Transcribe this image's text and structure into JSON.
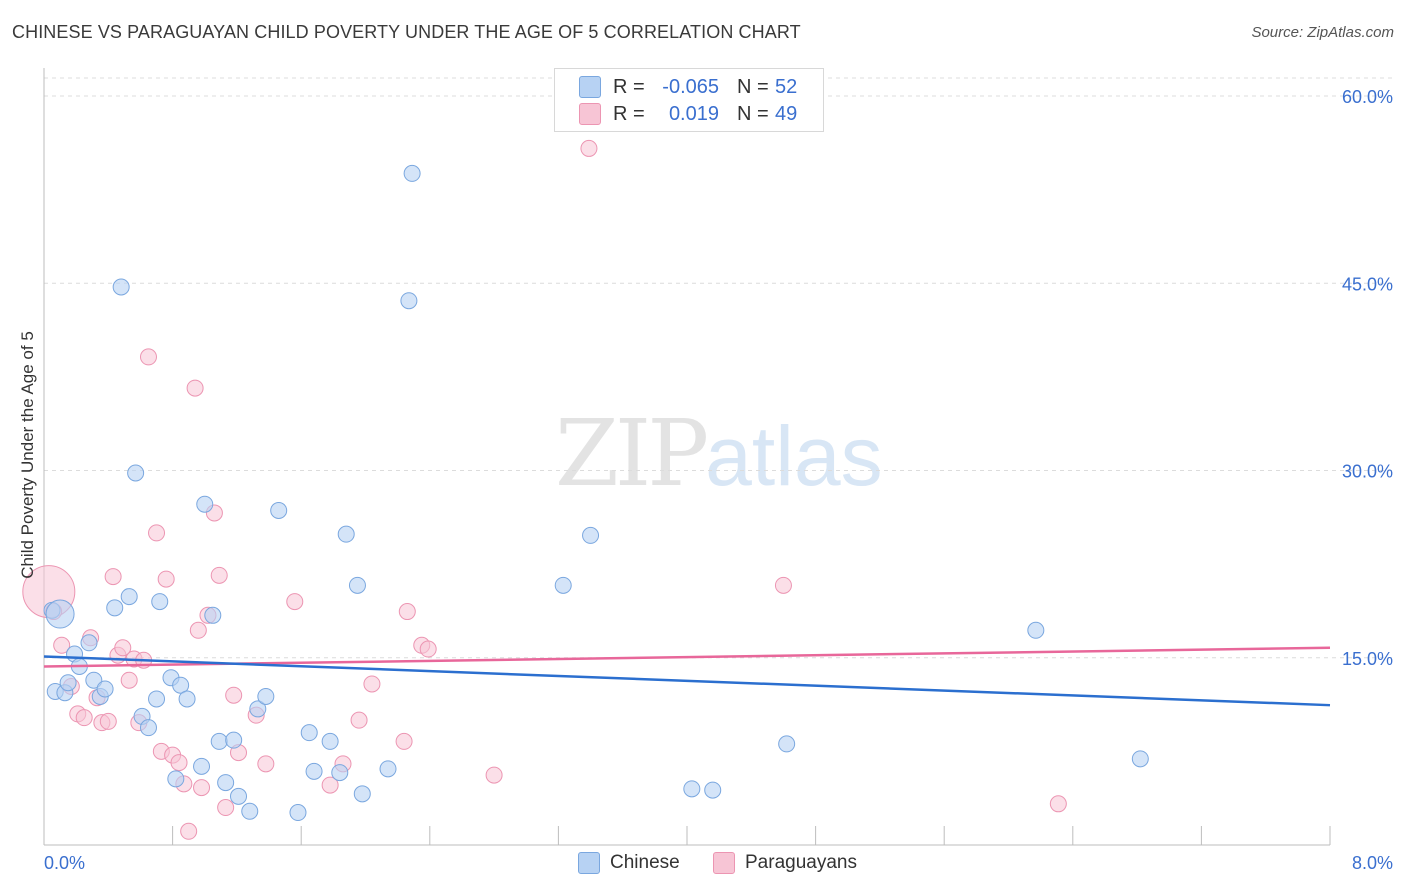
{
  "title": "CHINESE VS PARAGUAYAN CHILD POVERTY UNDER THE AGE OF 5 CORRELATION CHART",
  "source": "Source: ZipAtlas.com",
  "watermark": {
    "zip": "ZIP",
    "atlas": "atlas"
  },
  "legend": {
    "rows": [
      {
        "r_label": "R =",
        "r_value": "-0.065",
        "n_label": "N =",
        "n_value": "52"
      },
      {
        "r_label": "R =",
        "r_value": "0.019",
        "n_label": "N =",
        "n_value": "49"
      }
    ]
  },
  "bottom_legend": {
    "chinese": "Chinese",
    "paraguayans": "Paraguayans"
  },
  "colors": {
    "blue_fill": "#b7d2f3",
    "blue_stroke": "#7aa7df",
    "blue_line": "#2b6fcf",
    "pink_fill": "#f7c5d5",
    "pink_stroke": "#ec95b2",
    "pink_line": "#e8679a",
    "axis_text": "#3a6fcf",
    "grid": "#dcdcdc"
  },
  "chart_data": {
    "type": "scatter",
    "title": "CHINESE VS PARAGUAYAN CHILD POVERTY UNDER THE AGE OF 5 CORRELATION CHART",
    "xlabel": "",
    "ylabel": "Child Poverty Under the Age of 5",
    "xlim": [
      0.0,
      8.0
    ],
    "ylim": [
      0.0,
      60.0
    ],
    "x_tick_labels": [
      "0.0%",
      "8.0%"
    ],
    "y_ticks": [
      15,
      30,
      45,
      60
    ],
    "y_tick_labels": [
      "15.0%",
      "30.0%",
      "45.0%",
      "60.0%"
    ],
    "series": [
      {
        "name": "Chinese",
        "r": -0.065,
        "n": 52,
        "trend": {
          "x": [
            0.0,
            8.0
          ],
          "y": [
            15.1,
            11.2
          ]
        },
        "points": [
          [
            0.05,
            18.8
          ],
          [
            0.07,
            12.3
          ],
          [
            0.13,
            12.2
          ],
          [
            0.15,
            13.0
          ],
          [
            0.19,
            15.3
          ],
          [
            0.22,
            14.3
          ],
          [
            0.28,
            16.2
          ],
          [
            0.31,
            13.2
          ],
          [
            0.35,
            11.9
          ],
          [
            0.38,
            12.5
          ],
          [
            0.44,
            19.0
          ],
          [
            0.48,
            44.7
          ],
          [
            0.53,
            19.9
          ],
          [
            0.57,
            29.8
          ],
          [
            0.61,
            10.3
          ],
          [
            0.65,
            9.4
          ],
          [
            0.7,
            11.7
          ],
          [
            0.72,
            19.5
          ],
          [
            0.79,
            13.4
          ],
          [
            0.82,
            5.3
          ],
          [
            0.85,
            12.8
          ],
          [
            0.89,
            11.7
          ],
          [
            0.98,
            6.3
          ],
          [
            1.0,
            27.3
          ],
          [
            1.05,
            18.4
          ],
          [
            1.09,
            8.3
          ],
          [
            1.13,
            5.0
          ],
          [
            1.18,
            8.4
          ],
          [
            1.21,
            3.9
          ],
          [
            1.28,
            2.7
          ],
          [
            1.33,
            10.9
          ],
          [
            1.38,
            11.9
          ],
          [
            1.46,
            26.8
          ],
          [
            1.58,
            2.6
          ],
          [
            1.65,
            9.0
          ],
          [
            1.68,
            5.9
          ],
          [
            1.78,
            8.3
          ],
          [
            1.84,
            5.8
          ],
          [
            1.88,
            24.9
          ],
          [
            1.95,
            20.8
          ],
          [
            1.98,
            4.1
          ],
          [
            2.14,
            6.1
          ],
          [
            2.27,
            43.6
          ],
          [
            2.29,
            53.8
          ],
          [
            3.23,
            20.8
          ],
          [
            3.4,
            24.8
          ],
          [
            4.03,
            4.5
          ],
          [
            4.16,
            4.4
          ],
          [
            4.62,
            8.1
          ],
          [
            6.17,
            17.2
          ],
          [
            6.82,
            6.9
          ],
          [
            0.1,
            18.5
          ]
        ]
      },
      {
        "name": "Paraguayans",
        "r": 0.019,
        "n": 49,
        "trend": {
          "x": [
            0.0,
            8.0
          ],
          "y": [
            14.3,
            15.8
          ]
        },
        "points": [
          [
            0.03,
            20.3
          ],
          [
            0.06,
            18.7
          ],
          [
            0.11,
            16.0
          ],
          [
            0.17,
            12.7
          ],
          [
            0.21,
            10.5
          ],
          [
            0.25,
            10.2
          ],
          [
            0.29,
            16.6
          ],
          [
            0.33,
            11.8
          ],
          [
            0.36,
            9.8
          ],
          [
            0.4,
            9.9
          ],
          [
            0.43,
            21.5
          ],
          [
            0.46,
            15.2
          ],
          [
            0.49,
            15.8
          ],
          [
            0.53,
            13.2
          ],
          [
            0.56,
            14.9
          ],
          [
            0.59,
            9.8
          ],
          [
            0.62,
            14.8
          ],
          [
            0.65,
            39.1
          ],
          [
            0.7,
            25.0
          ],
          [
            0.73,
            7.5
          ],
          [
            0.76,
            21.3
          ],
          [
            0.8,
            7.2
          ],
          [
            0.84,
            6.6
          ],
          [
            0.87,
            4.9
          ],
          [
            0.9,
            1.1
          ],
          [
            0.94,
            36.6
          ],
          [
            0.96,
            17.2
          ],
          [
            0.98,
            4.6
          ],
          [
            1.02,
            18.4
          ],
          [
            1.06,
            26.6
          ],
          [
            1.09,
            21.6
          ],
          [
            1.13,
            3.0
          ],
          [
            1.18,
            12.0
          ],
          [
            1.21,
            7.4
          ],
          [
            1.32,
            10.4
          ],
          [
            1.38,
            6.5
          ],
          [
            1.56,
            19.5
          ],
          [
            1.78,
            4.8
          ],
          [
            1.86,
            6.5
          ],
          [
            1.96,
            10.0
          ],
          [
            2.04,
            12.9
          ],
          [
            2.24,
            8.3
          ],
          [
            2.26,
            18.7
          ],
          [
            2.35,
            16.0
          ],
          [
            2.39,
            15.7
          ],
          [
            2.8,
            5.6
          ],
          [
            3.39,
            55.8
          ],
          [
            4.6,
            20.8
          ],
          [
            6.31,
            3.3
          ]
        ]
      }
    ]
  }
}
